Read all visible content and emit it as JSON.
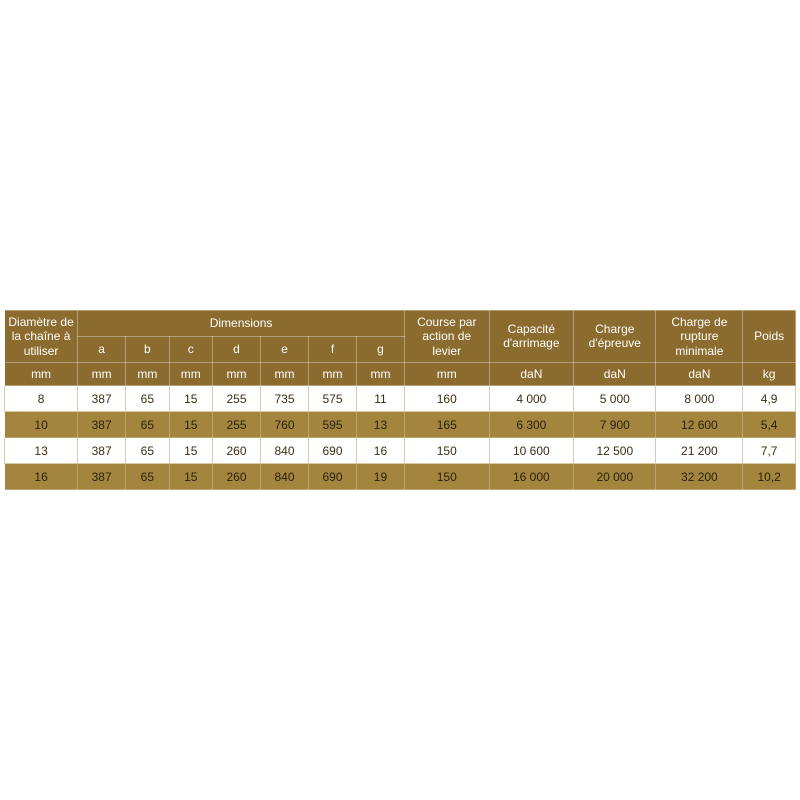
{
  "style": {
    "header_bg": "#8b6b2e",
    "row_dark_bg": "#a3853e",
    "row_light_bg": "#ffffff",
    "row_border": "#d9cba6",
    "text_dark": "#3b2e15",
    "text_on_dark": "#2b210e",
    "header_fontsize": 12,
    "cell_fontsize": 12
  },
  "table": {
    "type": "table",
    "columns": 13,
    "header_rows": [
      {
        "cells": [
          {
            "label": "Diamètre de la chaîne à utiliser",
            "colspan": 1,
            "rowspan": 2
          },
          {
            "label": "Dimensions",
            "colspan": 7,
            "rowspan": 1
          },
          {
            "label": "Course par action de levier",
            "colspan": 1,
            "rowspan": 2
          },
          {
            "label": "Capacité d'arrimage",
            "colspan": 1,
            "rowspan": 2
          },
          {
            "label": "Charge d'épreuve",
            "colspan": 1,
            "rowspan": 2
          },
          {
            "label": "Charge de rupture minimale",
            "colspan": 1,
            "rowspan": 2
          },
          {
            "label": "Poids",
            "colspan": 1,
            "rowspan": 2
          }
        ]
      },
      {
        "cells": [
          {
            "label": "a"
          },
          {
            "label": "b"
          },
          {
            "label": "c"
          },
          {
            "label": "d"
          },
          {
            "label": "e"
          },
          {
            "label": "f"
          },
          {
            "label": "g"
          }
        ]
      },
      {
        "cells": [
          {
            "label": "mm"
          },
          {
            "label": "mm"
          },
          {
            "label": "mm"
          },
          {
            "label": "mm"
          },
          {
            "label": "mm"
          },
          {
            "label": "mm"
          },
          {
            "label": "mm"
          },
          {
            "label": "mm"
          },
          {
            "label": "mm"
          },
          {
            "label": "daN"
          },
          {
            "label": "daN"
          },
          {
            "label": "daN"
          },
          {
            "label": "kg"
          }
        ]
      }
    ],
    "rows": [
      {
        "shade": "light",
        "cells": [
          "8",
          "387",
          "65",
          "15",
          "255",
          "735",
          "575",
          "11",
          "160",
          "4 000",
          "5 000",
          "8 000",
          "4,9"
        ]
      },
      {
        "shade": "dark",
        "cells": [
          "10",
          "387",
          "65",
          "15",
          "255",
          "760",
          "595",
          "13",
          "165",
          "6 300",
          "7 900",
          "12 600",
          "5,4"
        ]
      },
      {
        "shade": "light",
        "cells": [
          "13",
          "387",
          "65",
          "15",
          "260",
          "840",
          "690",
          "16",
          "150",
          "10 600",
          "12 500",
          "21 200",
          "7,7"
        ]
      },
      {
        "shade": "dark",
        "cells": [
          "16",
          "387",
          "65",
          "15",
          "260",
          "840",
          "690",
          "19",
          "150",
          "16 000",
          "20 000",
          "32 200",
          "10,2"
        ]
      }
    ]
  }
}
